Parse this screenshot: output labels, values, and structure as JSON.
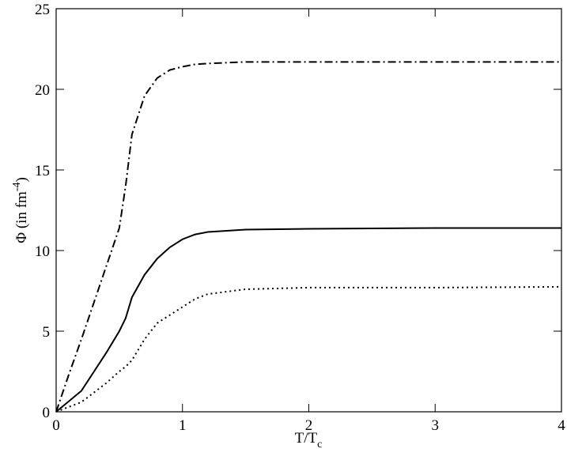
{
  "chart_data": {
    "type": "line",
    "xlabel": [
      "T/T",
      "c"
    ],
    "ylabel": [
      "Φ (in fm",
      "-4",
      ")"
    ],
    "x": [
      0,
      0.1,
      0.2,
      0.3,
      0.4,
      0.5,
      0.55,
      0.6,
      0.7,
      0.8,
      0.9,
      1.0,
      1.1,
      1.2,
      1.5,
      2,
      3,
      4
    ],
    "series": [
      {
        "color": "#000000",
        "dash": "dashdot",
        "values": [
          0,
          2.3,
          4.5,
          6.8,
          9.1,
          11.4,
          14,
          17.2,
          19.6,
          20.7,
          21.2,
          21.4,
          21.55,
          21.6,
          21.7,
          21.7,
          21.7,
          21.7
        ]
      },
      {
        "color": "#000000",
        "dash": "solid",
        "values": [
          0,
          0.65,
          1.3,
          2.5,
          3.7,
          5.0,
          5.8,
          7.1,
          8.5,
          9.5,
          10.2,
          10.7,
          11.0,
          11.15,
          11.3,
          11.35,
          11.4,
          11.4
        ]
      },
      {
        "color": "#000000",
        "dash": "dotted",
        "values": [
          0,
          0.3,
          0.6,
          1.2,
          1.8,
          2.5,
          2.8,
          3.2,
          4.5,
          5.5,
          6.0,
          6.5,
          7.0,
          7.3,
          7.6,
          7.7,
          7.7,
          7.75
        ]
      }
    ],
    "xlim": [
      0,
      4
    ],
    "xticks": [
      0,
      1,
      2,
      3,
      4
    ],
    "ylim": [
      0,
      25
    ],
    "yticks": [
      0,
      5,
      10,
      15,
      20,
      25
    ]
  }
}
